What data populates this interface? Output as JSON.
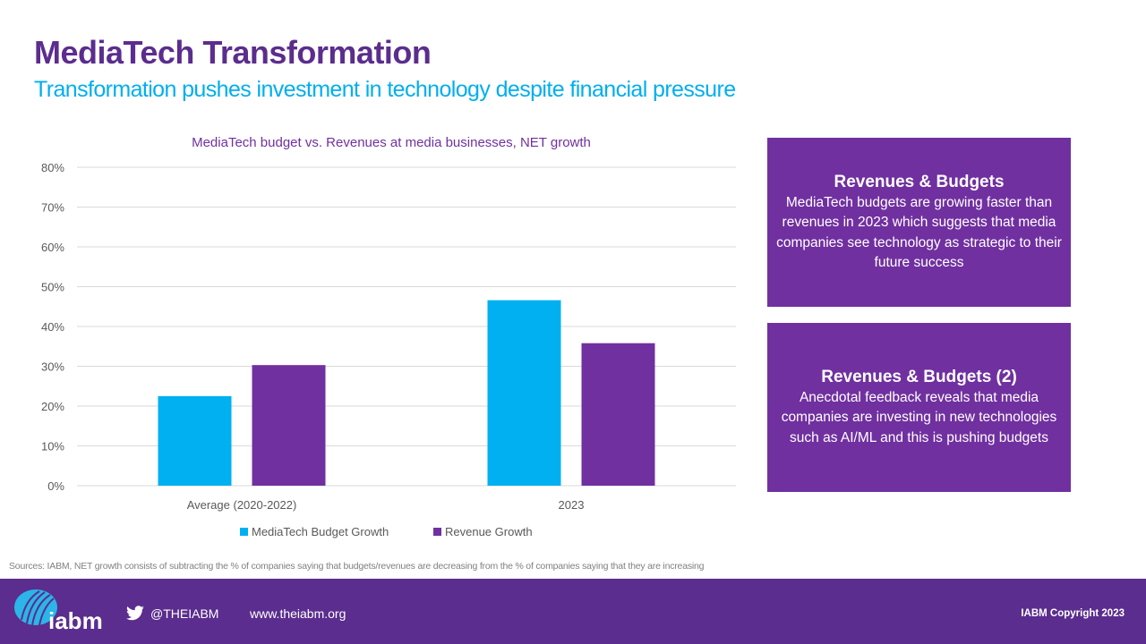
{
  "header": {
    "title": "MediaTech Transformation",
    "subtitle": "Transformation pushes investment in technology despite financial pressure"
  },
  "chart_data": {
    "type": "bar",
    "title": "MediaTech budget vs. Revenues at media businesses, NET growth",
    "xlabel": "",
    "ylabel": "",
    "categories": [
      "Average (2020-2022)",
      "2023"
    ],
    "series": [
      {
        "name": "MediaTech Budget Growth",
        "color": "#00b0f0",
        "values": [
          22.5,
          46.6
        ]
      },
      {
        "name": "Revenue Growth",
        "color": "#7030a0",
        "values": [
          30.3,
          35.8
        ]
      }
    ],
    "ylim": [
      0,
      80
    ],
    "yticks": [
      0,
      10,
      20,
      30,
      40,
      50,
      60,
      70,
      80
    ],
    "ytick_labels": [
      "0%",
      "10%",
      "20%",
      "30%",
      "40%",
      "50%",
      "60%",
      "70%",
      "80%"
    ],
    "grid": true,
    "legend_position": "bottom"
  },
  "callouts": [
    {
      "heading": "Revenues & Budgets",
      "body": "MediaTech budgets are growing faster than revenues in 2023 which suggests that media companies see technology as strategic to their future success"
    },
    {
      "heading": "Revenues & Budgets (2)",
      "body": "Anecdotal feedback reveals that media companies are investing in new technologies such as AI/ML and this is pushing budgets"
    }
  ],
  "sources": "Sources: IABM, NET growth consists of subtracting the % of companies saying that budgets/revenues are decreasing from the % of companies saying that they are increasing",
  "footer": {
    "logo_text": "iabm",
    "twitter_handle": "@THEIABM",
    "website": "www.theiabm.org",
    "copyright": "IABM Copyright 2023"
  },
  "colors": {
    "brand_purple": "#5b2d8e",
    "accent_blue": "#00aeef",
    "callout_purple": "#7030a0"
  }
}
